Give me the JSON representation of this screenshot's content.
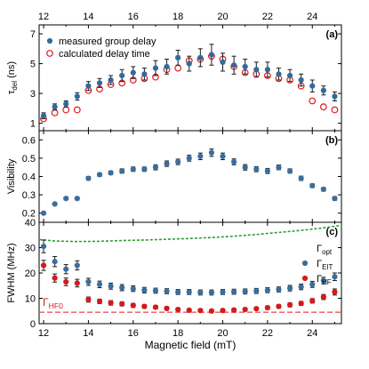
{
  "colors": {
    "measured": "#2e6b9e",
    "calculated": "#e41a1c",
    "eit": "#3b6d9c",
    "hf": "#d7191c",
    "opt": "#2e9c2e",
    "hf0": "#f07070"
  },
  "chart_data": [
    {
      "type": "scatter",
      "panel_label": "(a)",
      "ylabel": "τdel (ns)",
      "ylabel_main": "τ",
      "ylabel_sub": "del",
      "ylabel_unit": " (ns)",
      "ylim": [
        0.5,
        7.6
      ],
      "yticks": [
        1,
        3,
        5,
        7
      ],
      "xlim": [
        11.8,
        25.3
      ],
      "top_xticks": [
        "12",
        "14",
        "16",
        "18",
        "20",
        "22",
        "24"
      ],
      "legend": [
        "measured group delay",
        "calculated delay time"
      ],
      "series": [
        {
          "name": "measured group delay",
          "x": [
            12.0,
            12.5,
            13.0,
            13.5,
            14.0,
            14.5,
            15.0,
            15.5,
            16.0,
            16.5,
            17.0,
            17.5,
            18.0,
            18.5,
            19.0,
            19.5,
            20.0,
            20.5,
            21.0,
            21.5,
            22.0,
            22.5,
            23.0,
            23.5,
            24.0,
            24.5,
            25.0
          ],
          "y": [
            1.5,
            2.1,
            2.3,
            2.8,
            3.5,
            3.7,
            3.9,
            4.2,
            4.4,
            4.3,
            4.7,
            4.8,
            5.4,
            5.0,
            5.4,
            5.6,
            5.1,
            4.9,
            4.8,
            4.6,
            4.6,
            4.3,
            4.2,
            3.9,
            3.5,
            3.2,
            2.8
          ],
          "err": [
            0.2,
            0.2,
            0.2,
            0.25,
            0.3,
            0.3,
            0.3,
            0.4,
            0.4,
            0.4,
            0.5,
            0.5,
            0.5,
            0.5,
            0.6,
            0.7,
            0.6,
            0.6,
            0.5,
            0.5,
            0.5,
            0.4,
            0.4,
            0.4,
            0.4,
            0.3,
            0.3
          ]
        },
        {
          "name": "calculated delay time",
          "x": [
            12.0,
            12.5,
            13.0,
            13.5,
            14.0,
            14.5,
            15.0,
            15.5,
            16.0,
            16.5,
            17.0,
            17.5,
            18.0,
            18.5,
            19.0,
            19.5,
            20.0,
            20.5,
            21.0,
            21.5,
            22.0,
            22.5,
            23.0,
            23.5,
            24.0,
            24.5,
            25.0
          ],
          "y": [
            1.3,
            1.7,
            1.9,
            1.9,
            3.2,
            3.3,
            3.6,
            3.7,
            3.9,
            4.0,
            4.1,
            4.6,
            4.7,
            5.2,
            5.3,
            5.5,
            5.3,
            4.8,
            4.4,
            4.3,
            4.2,
            4.0,
            3.9,
            3.5,
            2.5,
            2.1,
            1.9
          ]
        }
      ]
    },
    {
      "type": "scatter",
      "panel_label": "(b)",
      "ylabel": "Visibility",
      "ylim": [
        0.15,
        0.65
      ],
      "yticks": [
        0.2,
        0.3,
        0.4,
        0.5,
        0.6
      ],
      "xlim": [
        11.8,
        25.3
      ],
      "series": [
        {
          "x": [
            12.0,
            12.5,
            13.0,
            13.5,
            14.0,
            14.5,
            15.0,
            15.5,
            16.0,
            16.5,
            17.0,
            17.5,
            18.0,
            18.5,
            19.0,
            19.5,
            20.0,
            20.5,
            21.0,
            21.5,
            22.0,
            22.5,
            23.0,
            23.5,
            24.0,
            24.5,
            25.0
          ],
          "y": [
            0.2,
            0.25,
            0.28,
            0.28,
            0.39,
            0.41,
            0.42,
            0.43,
            0.44,
            0.44,
            0.45,
            0.47,
            0.48,
            0.5,
            0.51,
            0.53,
            0.51,
            0.48,
            0.45,
            0.44,
            0.43,
            0.45,
            0.43,
            0.39,
            0.35,
            0.33,
            0.28
          ],
          "err": [
            0.005,
            0.006,
            0.008,
            0.008,
            0.01,
            0.01,
            0.01,
            0.012,
            0.012,
            0.012,
            0.014,
            0.015,
            0.015,
            0.016,
            0.018,
            0.02,
            0.018,
            0.016,
            0.015,
            0.014,
            0.014,
            0.013,
            0.012,
            0.012,
            0.01,
            0.01,
            0.01
          ]
        }
      ]
    },
    {
      "type": "scatter",
      "panel_label": "(c)",
      "ylabel": "FWHM (MHz)",
      "ylim": [
        0,
        40
      ],
      "yticks": [
        0,
        10,
        20,
        30,
        40
      ],
      "xlim": [
        11.8,
        25.3
      ],
      "xlabel": "Magnetic field (mT)",
      "xticks": [
        "12",
        "14",
        "16",
        "18",
        "20",
        "22",
        "24"
      ],
      "labels": {
        "opt_main": "Γ",
        "opt_sub": "opt",
        "eit_main": "Γ",
        "eit_sub": "EIT",
        "hf_main": "Γ",
        "hf_sub": "HF",
        "hf0_main": "Γ",
        "hf0_sub": "HF0"
      },
      "opt_line": {
        "x": [
          11.8,
          12.5,
          13.5,
          14.5,
          15.5,
          16.5,
          17.5,
          18.5,
          19.5,
          20.5,
          21.5,
          22.5,
          23.5,
          24.5,
          25.3
        ],
        "y": [
          33.2,
          32.6,
          32.4,
          32.5,
          32.8,
          33.0,
          33.3,
          33.6,
          34.0,
          34.5,
          35.2,
          36.0,
          36.8,
          37.8,
          38.8
        ]
      },
      "hf0_level": 4.5,
      "series": [
        {
          "name": "ΓEIT",
          "x": [
            12.0,
            12.5,
            13.0,
            13.5,
            14.0,
            14.5,
            15.0,
            15.5,
            16.0,
            16.5,
            17.0,
            17.5,
            18.0,
            18.5,
            19.0,
            19.5,
            20.0,
            20.5,
            21.0,
            21.5,
            22.0,
            22.5,
            23.0,
            23.5,
            24.0,
            24.5,
            25.0
          ],
          "y": [
            30.5,
            24.5,
            21.5,
            23.0,
            16.5,
            15.5,
            14.8,
            14.2,
            13.8,
            13.2,
            13.0,
            12.8,
            12.5,
            12.5,
            12.3,
            12.3,
            12.5,
            12.6,
            12.7,
            12.9,
            13.2,
            13.5,
            14.0,
            14.5,
            15.5,
            17.0,
            18.5
          ],
          "err": [
            2.5,
            2.0,
            1.8,
            1.8,
            1.4,
            1.3,
            1.2,
            1.2,
            1.1,
            1.1,
            1.0,
            1.0,
            1.0,
            1.0,
            1.0,
            1.0,
            1.0,
            1.0,
            1.0,
            1.0,
            1.0,
            1.0,
            1.1,
            1.1,
            1.2,
            1.3,
            1.5
          ]
        },
        {
          "name": "ΓHF",
          "x": [
            12.0,
            12.5,
            13.0,
            13.5,
            14.0,
            14.5,
            15.0,
            15.5,
            16.0,
            16.5,
            17.0,
            17.5,
            18.0,
            18.5,
            19.0,
            19.5,
            20.0,
            20.5,
            21.0,
            21.5,
            22.0,
            22.5,
            23.0,
            23.5,
            24.0,
            24.5,
            25.0
          ],
          "y": [
            23.0,
            18.0,
            16.5,
            16.0,
            9.5,
            8.8,
            8.2,
            7.8,
            7.2,
            6.8,
            6.5,
            6.0,
            5.6,
            5.3,
            5.2,
            5.0,
            5.2,
            5.4,
            5.6,
            5.9,
            6.3,
            6.8,
            7.4,
            8.0,
            9.0,
            10.5,
            12.5
          ],
          "err": [
            2.0,
            1.6,
            1.5,
            1.5,
            1.0,
            0.9,
            0.9,
            0.8,
            0.8,
            0.7,
            0.7,
            0.7,
            0.6,
            0.6,
            0.6,
            0.6,
            0.6,
            0.6,
            0.6,
            0.6,
            0.7,
            0.7,
            0.8,
            0.8,
            0.9,
            1.0,
            1.2
          ]
        }
      ]
    }
  ]
}
